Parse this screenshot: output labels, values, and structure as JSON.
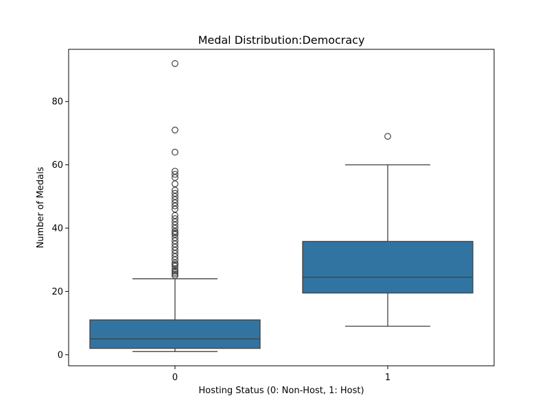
{
  "chart_data": {
    "type": "box",
    "title": "Medal Distribution:Democracy",
    "xlabel": "Hosting Status (0: Non-Host, 1: Host)",
    "ylabel": "Number of Medals",
    "categories": [
      "0",
      "1"
    ],
    "ylim": [
      -3.5,
      96.5
    ],
    "yticks": [
      0,
      20,
      40,
      60,
      80
    ],
    "box_color": "#3274a1",
    "line_color": "#3f3f3f",
    "grid": false,
    "boxes": [
      {
        "category": "0",
        "whisker_low": 1,
        "q1": 2,
        "median": 5,
        "q3": 11,
        "whisker_high": 24,
        "outliers": [
          25,
          25.5,
          26,
          26.5,
          27,
          28,
          28.5,
          29,
          30,
          31,
          32,
          33,
          34,
          35,
          36,
          37,
          38,
          38.5,
          39,
          40,
          41,
          42,
          43,
          44,
          46,
          47,
          48,
          49,
          50,
          51,
          52,
          54,
          56,
          57,
          58,
          64,
          71,
          92
        ]
      },
      {
        "category": "1",
        "whisker_low": 9,
        "q1": 19.5,
        "median": 24.5,
        "q3": 35.8,
        "whisker_high": 60,
        "outliers": [
          69
        ]
      }
    ]
  }
}
